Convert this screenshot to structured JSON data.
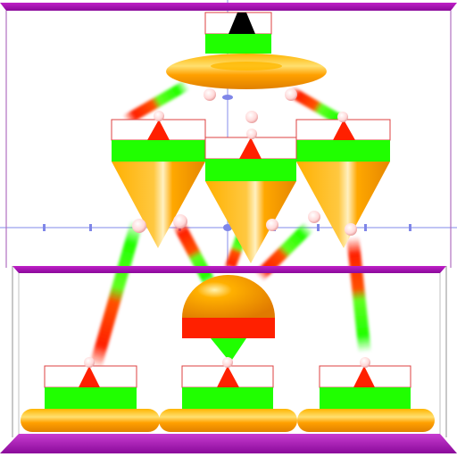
{
  "scene": {
    "type": "3d-render",
    "background": "#ffffff",
    "levels": 3,
    "colors": {
      "frame": "#a010b0",
      "axis": "#8a8ae6",
      "orange": "#ffa000",
      "red": "#ff2000",
      "green": "#20ff00",
      "black": "#000000",
      "sphere": "#ffe0e0"
    },
    "nodes": [
      {
        "id": "top",
        "level": 1,
        "kind": "cone-tip-black"
      },
      {
        "id": "middle-left",
        "level": 2,
        "kind": "cone-down"
      },
      {
        "id": "middle-center",
        "level": 2,
        "kind": "cone-down"
      },
      {
        "id": "middle-right",
        "level": 2,
        "kind": "cone-down"
      },
      {
        "id": "bottom-left",
        "level": 3,
        "kind": "pedestal"
      },
      {
        "id": "bottom-center-dome",
        "level": 3,
        "kind": "dome"
      },
      {
        "id": "bottom-center",
        "level": 3,
        "kind": "pedestal"
      },
      {
        "id": "bottom-right",
        "level": 3,
        "kind": "pedestal"
      }
    ],
    "links": [
      {
        "from": "top",
        "to": "middle-left"
      },
      {
        "from": "top",
        "to": "middle-right"
      },
      {
        "from": "middle-left",
        "to": "bottom-left"
      },
      {
        "from": "middle-left",
        "to": "bottom-center-dome"
      },
      {
        "from": "middle-center",
        "to": "bottom-center-dome"
      },
      {
        "from": "middle-center",
        "to": "bottom-center-dome"
      },
      {
        "from": "middle-right",
        "to": "bottom-center-dome"
      },
      {
        "from": "middle-right",
        "to": "bottom-right"
      }
    ]
  }
}
